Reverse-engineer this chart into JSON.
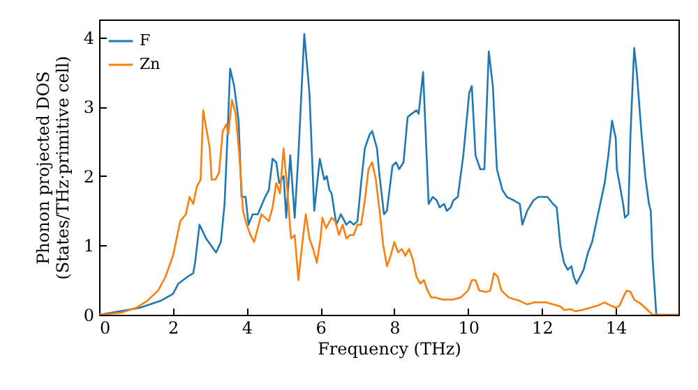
{
  "chart_data": {
    "type": "line",
    "xlabel": "Frequency (THz)",
    "ylabel": "Phonon projected DOS\n(States/THz·primitive cell)",
    "xlim": [
      0,
      15.7
    ],
    "xticks": [
      0,
      2,
      4,
      6,
      8,
      10,
      12,
      14
    ],
    "ylim": [
      0,
      4.26
    ],
    "yticks": [
      0,
      1,
      2,
      3,
      4
    ],
    "grid": false,
    "legend": "top left",
    "series": [
      {
        "name": "F",
        "color": "#1f77b4",
        "x": [
          0,
          1.1,
          1.66,
          2.0,
          2.15,
          2.4,
          2.55,
          2.6,
          2.72,
          2.9,
          3.1,
          3.17,
          3.3,
          3.4,
          3.48,
          3.55,
          3.66,
          3.78,
          3.86,
          3.97,
          4.05,
          4.16,
          4.3,
          4.5,
          4.6,
          4.7,
          4.8,
          4.88,
          5.0,
          5.07,
          5.18,
          5.3,
          5.4,
          5.56,
          5.7,
          5.83,
          5.98,
          6.1,
          6.17,
          6.24,
          6.3,
          6.43,
          6.55,
          6.7,
          6.8,
          6.9,
          7.0,
          7.1,
          7.2,
          7.33,
          7.4,
          7.53,
          7.6,
          7.72,
          7.8,
          7.95,
          8.05,
          8.13,
          8.25,
          8.36,
          8.47,
          8.6,
          8.66,
          8.78,
          8.93,
          9.04,
          9.15,
          9.23,
          9.35,
          9.42,
          9.53,
          9.6,
          9.72,
          9.87,
          10.03,
          10.1,
          10.2,
          10.33,
          10.44,
          10.56,
          10.67,
          10.78,
          10.93,
          11.05,
          11.24,
          11.4,
          11.47,
          11.6,
          11.77,
          11.9,
          12.15,
          12.3,
          12.4,
          12.5,
          12.6,
          12.7,
          12.8,
          12.86,
          12.94,
          13.13,
          13.25,
          13.36,
          13.5,
          13.7,
          13.8,
          13.9,
          14.0,
          14.03,
          14.1,
          14.2,
          14.25,
          14.34,
          14.4,
          14.5,
          14.57,
          14.7,
          14.8,
          14.9,
          14.95,
          15.0,
          15.1,
          15.7
        ],
        "values": [
          0,
          0.1,
          0.2,
          0.3,
          0.45,
          0.55,
          0.6,
          0.75,
          1.3,
          1.1,
          0.95,
          0.9,
          1.05,
          1.6,
          2.6,
          3.55,
          3.3,
          2.8,
          1.7,
          1.7,
          1.3,
          1.45,
          1.45,
          1.7,
          1.8,
          2.25,
          2.2,
          1.9,
          2.0,
          1.4,
          2.3,
          1.4,
          2.3,
          4.05,
          3.2,
          1.5,
          2.25,
          1.95,
          2.0,
          1.8,
          1.75,
          1.3,
          1.45,
          1.3,
          1.35,
          1.3,
          1.35,
          1.9,
          2.4,
          2.6,
          2.65,
          2.4,
          2.0,
          1.45,
          1.5,
          2.15,
          2.2,
          2.1,
          2.2,
          2.85,
          2.9,
          2.95,
          2.9,
          3.5,
          1.6,
          1.7,
          1.65,
          1.55,
          1.6,
          1.5,
          1.55,
          1.65,
          1.7,
          2.3,
          3.2,
          3.3,
          2.3,
          2.1,
          2.1,
          3.8,
          3.3,
          2.1,
          1.8,
          1.7,
          1.65,
          1.6,
          1.3,
          1.5,
          1.65,
          1.7,
          1.7,
          1.6,
          1.55,
          1.0,
          0.75,
          0.65,
          0.7,
          0.55,
          0.45,
          0.65,
          0.9,
          1.05,
          1.4,
          1.9,
          2.3,
          2.8,
          2.55,
          2.1,
          1.9,
          1.6,
          1.4,
          1.45,
          2.6,
          3.85,
          3.5,
          2.6,
          2.0,
          1.6,
          1.5,
          0.8,
          0,
          0
        ]
      },
      {
        "name": "Zn",
        "color": "#ff7f0e",
        "x": [
          0,
          0.6,
          1.0,
          1.3,
          1.6,
          1.8,
          2.0,
          2.1,
          2.2,
          2.35,
          2.45,
          2.55,
          2.65,
          2.75,
          2.82,
          2.9,
          3.0,
          3.05,
          3.15,
          3.25,
          3.35,
          3.45,
          3.5,
          3.6,
          3.7,
          3.8,
          3.9,
          4.0,
          4.1,
          4.2,
          4.3,
          4.4,
          4.5,
          4.6,
          4.7,
          4.8,
          4.9,
          5.0,
          5.1,
          5.2,
          5.3,
          5.4,
          5.5,
          5.6,
          5.7,
          5.8,
          5.9,
          6.0,
          6.05,
          6.15,
          6.3,
          6.4,
          6.5,
          6.6,
          6.7,
          6.8,
          6.9,
          7.0,
          7.1,
          7.2,
          7.3,
          7.4,
          7.5,
          7.6,
          7.7,
          7.8,
          7.9,
          8.0,
          8.1,
          8.2,
          8.3,
          8.4,
          8.5,
          8.6,
          8.7,
          8.8,
          8.9,
          9.0,
          9.1,
          9.3,
          9.6,
          9.8,
          10.0,
          10.1,
          10.2,
          10.3,
          10.5,
          10.6,
          10.7,
          10.8,
          10.9,
          11.1,
          11.4,
          11.6,
          11.8,
          12.1,
          12.3,
          12.5,
          12.6,
          12.8,
          12.9,
          13.1,
          13.3,
          13.5,
          13.7,
          13.8,
          14.0,
          14.1,
          14.2,
          14.3,
          14.4,
          14.5,
          14.7,
          14.9,
          15.0,
          15.7
        ],
        "values": [
          0,
          0.03,
          0.1,
          0.2,
          0.35,
          0.55,
          0.85,
          1.1,
          1.35,
          1.45,
          1.7,
          1.6,
          1.85,
          1.95,
          2.95,
          2.7,
          2.4,
          1.95,
          1.95,
          2.05,
          2.65,
          2.75,
          2.6,
          3.1,
          2.9,
          2.3,
          1.5,
          1.3,
          1.15,
          1.05,
          1.25,
          1.45,
          1.4,
          1.35,
          1.55,
          1.9,
          1.75,
          2.4,
          1.8,
          1.1,
          1.15,
          0.5,
          1.0,
          1.45,
          1.1,
          0.95,
          0.75,
          1.1,
          1.4,
          1.25,
          1.4,
          1.35,
          1.15,
          1.3,
          1.1,
          1.15,
          1.15,
          1.3,
          1.3,
          1.65,
          2.1,
          2.2,
          1.95,
          1.5,
          1.0,
          0.7,
          0.85,
          1.05,
          0.9,
          0.95,
          0.85,
          0.95,
          0.8,
          0.55,
          0.45,
          0.5,
          0.35,
          0.25,
          0.25,
          0.22,
          0.22,
          0.25,
          0.35,
          0.5,
          0.5,
          0.35,
          0.33,
          0.35,
          0.6,
          0.55,
          0.35,
          0.25,
          0.2,
          0.15,
          0.18,
          0.18,
          0.15,
          0.12,
          0.07,
          0.08,
          0.05,
          0.07,
          0.1,
          0.13,
          0.18,
          0.15,
          0.1,
          0.13,
          0.25,
          0.35,
          0.33,
          0.22,
          0.15,
          0.05,
          0,
          0
        ]
      }
    ]
  }
}
